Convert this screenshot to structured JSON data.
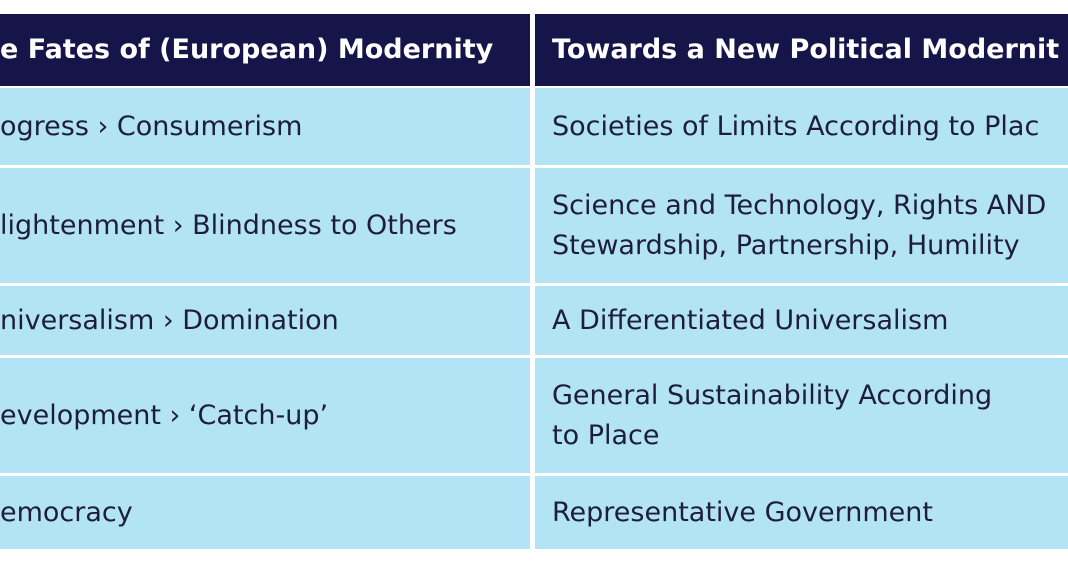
{
  "table": {
    "header": [
      "e Fates of (European) Modernity",
      "Towards a New Political Modernit"
    ],
    "rows": [
      [
        [
          "ogress › Consumerism"
        ],
        [
          "Societies of Limits According to Plac"
        ]
      ],
      [
        [
          "lightenment › Blindness to Others"
        ],
        [
          "Science and Technology, Rights AND",
          "Stewardship, Partnership, Humility"
        ]
      ],
      [
        [
          "niversalism › Domination"
        ],
        [
          "A Differentiated Universalism"
        ]
      ],
      [
        [
          "evelopment › ‘Catch-up’"
        ],
        [
          "General Sustainability According",
          "to Place"
        ]
      ],
      [
        [
          "emocracy"
        ],
        [
          "Representative Government"
        ]
      ]
    ]
  }
}
